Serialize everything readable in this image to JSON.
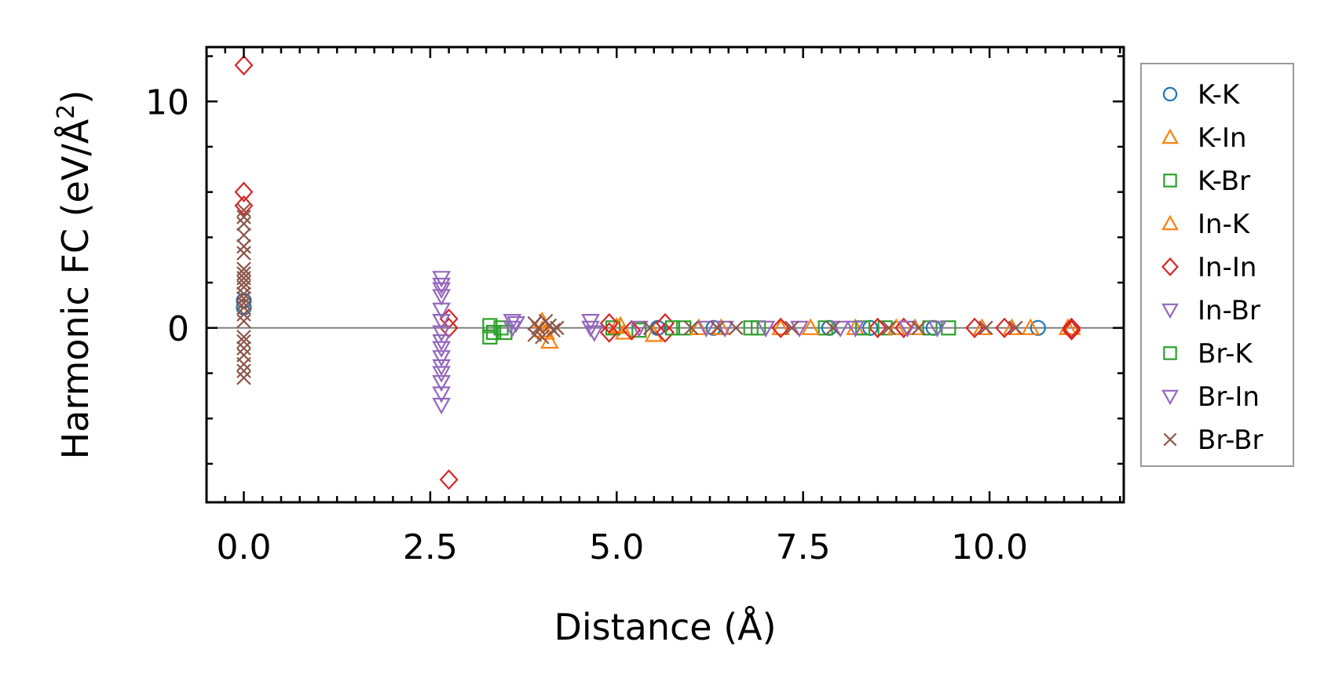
{
  "chart_data": {
    "type": "scatter",
    "title": "",
    "xlabel": "Distance (Å)",
    "ylabel_prefix": "Harmonic FC (eV/Å",
    "ylabel_sup": "2",
    "ylabel_suffix": ")",
    "xlim": [
      -0.5,
      11.8
    ],
    "ylim": [
      -7.7,
      12.4
    ],
    "xticks": [
      0.0,
      2.5,
      5.0,
      7.5,
      10.0
    ],
    "xtick_labels": [
      "0.0",
      "2.5",
      "5.0",
      "7.5",
      "10.0"
    ],
    "yticks": [
      0,
      10
    ],
    "ytick_labels": [
      "0",
      "10"
    ],
    "zero_line": true,
    "legend_position": "outside-right",
    "series": [
      {
        "name": "K-K",
        "color": "#1f77b4",
        "marker": "circle",
        "points": [
          [
            0.0,
            0.9
          ],
          [
            0.0,
            1.2
          ],
          [
            5.55,
            0.0
          ],
          [
            6.3,
            0.0
          ],
          [
            7.85,
            0.0
          ],
          [
            8.4,
            0.0
          ],
          [
            9.25,
            0.0
          ],
          [
            10.65,
            0.0
          ]
        ]
      },
      {
        "name": "K-In",
        "color": "#ff7f0e",
        "marker": "triangle-up",
        "points": [
          [
            4.0,
            0.3
          ],
          [
            4.05,
            -0.2
          ],
          [
            4.1,
            -0.6
          ],
          [
            5.0,
            0.05
          ],
          [
            5.1,
            -0.2
          ],
          [
            5.5,
            -0.3
          ],
          [
            6.4,
            0.0
          ],
          [
            7.2,
            0.0
          ],
          [
            8.2,
            0.0
          ],
          [
            9.0,
            0.0
          ],
          [
            9.9,
            0.0
          ],
          [
            10.55,
            0.0
          ],
          [
            11.1,
            0.0
          ]
        ]
      },
      {
        "name": "K-Br",
        "color": "#2ca02c",
        "marker": "square",
        "points": [
          [
            4.95,
            0.0
          ],
          [
            5.3,
            -0.1
          ],
          [
            5.9,
            0.0
          ],
          [
            6.9,
            0.0
          ],
          [
            7.8,
            0.0
          ],
          [
            8.6,
            0.0
          ],
          [
            9.2,
            0.0
          ],
          [
            9.45,
            0.0
          ]
        ]
      },
      {
        "name": "In-K",
        "color": "#ff7f0e",
        "marker": "triangle-up",
        "points": [
          [
            4.0,
            -0.1
          ],
          [
            5.05,
            0.1
          ],
          [
            6.1,
            0.0
          ],
          [
            7.6,
            0.0
          ],
          [
            8.75,
            0.0
          ],
          [
            10.3,
            0.0
          ],
          [
            11.05,
            0.0
          ]
        ]
      },
      {
        "name": "In-In",
        "color": "#d62728",
        "marker": "diamond",
        "points": [
          [
            0.0,
            11.6
          ],
          [
            0.0,
            6.0
          ],
          [
            0.0,
            5.4
          ],
          [
            2.75,
            0.4
          ],
          [
            2.75,
            0.0
          ],
          [
            2.75,
            -6.7
          ],
          [
            4.9,
            0.2
          ],
          [
            4.9,
            -0.2
          ],
          [
            5.2,
            -0.1
          ],
          [
            5.65,
            0.2
          ],
          [
            5.65,
            -0.2
          ],
          [
            7.2,
            0.0
          ],
          [
            8.5,
            0.0
          ],
          [
            8.85,
            0.0
          ],
          [
            9.8,
            0.0
          ],
          [
            10.2,
            0.0
          ],
          [
            11.1,
            0.0
          ],
          [
            11.1,
            -0.1
          ]
        ]
      },
      {
        "name": "In-Br",
        "color": "#9467bd",
        "marker": "triangle-down",
        "points": [
          [
            2.65,
            2.2
          ],
          [
            2.65,
            1.9
          ],
          [
            2.65,
            1.7
          ],
          [
            2.65,
            1.4
          ],
          [
            2.65,
            0.8
          ],
          [
            2.65,
            0.3
          ],
          [
            2.65,
            -0.2
          ],
          [
            2.65,
            -0.6
          ],
          [
            2.65,
            -0.9
          ],
          [
            2.65,
            -1.3
          ],
          [
            2.65,
            -1.7
          ],
          [
            2.65,
            -2.0
          ],
          [
            2.65,
            -2.4
          ],
          [
            2.65,
            -2.9
          ],
          [
            2.65,
            -3.4
          ],
          [
            5.3,
            0.0
          ],
          [
            6.2,
            0.0
          ],
          [
            7.0,
            0.0
          ],
          [
            8.0,
            0.0
          ],
          [
            8.9,
            0.0
          ]
        ]
      },
      {
        "name": "Br-K",
        "color": "#2ca02c",
        "marker": "square",
        "points": [
          [
            3.3,
            0.1
          ],
          [
            3.3,
            -0.4
          ],
          [
            3.35,
            -0.2
          ],
          [
            3.45,
            0.0
          ],
          [
            3.5,
            -0.2
          ],
          [
            5.75,
            0.0
          ],
          [
            6.8,
            0.0
          ],
          [
            8.3,
            0.0
          ]
        ]
      },
      {
        "name": "Br-In",
        "color": "#9467bd",
        "marker": "triangle-down",
        "points": [
          [
            3.6,
            0.3
          ],
          [
            3.6,
            0.0
          ],
          [
            3.65,
            0.2
          ],
          [
            4.65,
            0.3
          ],
          [
            4.65,
            0.0
          ],
          [
            4.7,
            -0.2
          ],
          [
            6.45,
            0.0
          ],
          [
            7.45,
            0.0
          ],
          [
            8.2,
            0.0
          ],
          [
            9.3,
            0.0
          ]
        ]
      },
      {
        "name": "Br-Br",
        "color": "#8c564b",
        "marker": "x",
        "points": [
          [
            0.0,
            5.2
          ],
          [
            0.0,
            4.9
          ],
          [
            0.0,
            4.6
          ],
          [
            0.0,
            4.1
          ],
          [
            0.0,
            3.6
          ],
          [
            0.0,
            3.3
          ],
          [
            0.0,
            2.6
          ],
          [
            0.0,
            2.4
          ],
          [
            0.0,
            2.2
          ],
          [
            0.0,
            2.0
          ],
          [
            0.0,
            1.8
          ],
          [
            0.0,
            1.5
          ],
          [
            0.0,
            1.3
          ],
          [
            0.0,
            1.1
          ],
          [
            0.0,
            0.9
          ],
          [
            0.0,
            0.6
          ],
          [
            0.0,
            0.3
          ],
          [
            0.0,
            -0.4
          ],
          [
            0.0,
            -0.6
          ],
          [
            0.0,
            -0.9
          ],
          [
            0.0,
            -1.2
          ],
          [
            0.0,
            -1.6
          ],
          [
            0.0,
            -1.9
          ],
          [
            0.0,
            -2.2
          ],
          [
            3.9,
            0.2
          ],
          [
            3.9,
            -0.3
          ],
          [
            3.95,
            0.0
          ],
          [
            4.0,
            -0.4
          ],
          [
            4.05,
            0.3
          ],
          [
            4.1,
            0.1
          ],
          [
            4.15,
            -0.1
          ],
          [
            4.2,
            0.0
          ],
          [
            5.45,
            0.0
          ],
          [
            6.0,
            0.0
          ],
          [
            6.35,
            0.0
          ],
          [
            6.6,
            0.0
          ],
          [
            7.35,
            0.0
          ],
          [
            7.9,
            0.0
          ],
          [
            8.65,
            0.0
          ],
          [
            9.05,
            0.0
          ],
          [
            9.95,
            0.0
          ],
          [
            10.35,
            0.0
          ]
        ]
      }
    ]
  }
}
